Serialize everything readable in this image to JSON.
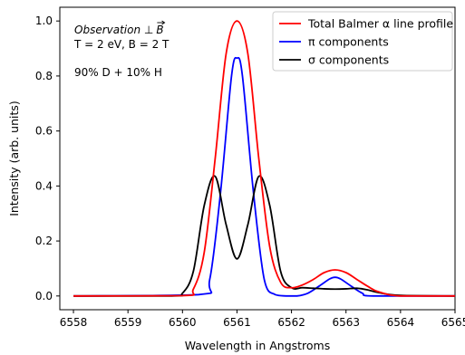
{
  "chart_data": {
    "type": "line",
    "xlabel": "Wavelength in Angstroms",
    "ylabel": "Intensity (arb. units)",
    "xlim": [
      6557.75,
      6565.0
    ],
    "ylim": [
      -0.05,
      1.05
    ],
    "xticks": [
      6558,
      6559,
      6560,
      6561,
      6562,
      6563,
      6564,
      6565
    ],
    "xtick_labels": [
      "6558",
      "6559",
      "6560",
      "6561",
      "6562",
      "6563",
      "6564",
      "6565"
    ],
    "yticks": [
      0.0,
      0.2,
      0.4,
      0.6,
      0.8,
      1.0
    ],
    "ytick_labels": [
      "0.0",
      "0.2",
      "0.4",
      "0.6",
      "0.8",
      "1.0"
    ],
    "grid": false,
    "legend_position": "top-right",
    "annotations": {
      "observation_prefix": "Observation ⊥",
      "observation_symbol": "B",
      "params_line": "T = 2 eV,  B = 2 T",
      "mixture": "90% D  +  10% H"
    },
    "series": [
      {
        "name": "Total Balmer α line profile",
        "color": "#ff0000",
        "x": [
          6558.0,
          6560.0,
          6560.2,
          6560.4,
          6560.6,
          6560.8,
          6561.0,
          6561.2,
          6561.4,
          6561.6,
          6561.8,
          6562.0,
          6562.2,
          6562.4,
          6562.6,
          6562.8,
          6563.0,
          6563.2,
          6563.4,
          6563.6,
          6564.0,
          6565.0
        ],
        "y": [
          0.0,
          0.001,
          0.025,
          0.16,
          0.5,
          0.88,
          1.0,
          0.88,
          0.5,
          0.18,
          0.05,
          0.03,
          0.04,
          0.06,
          0.085,
          0.095,
          0.085,
          0.06,
          0.035,
          0.015,
          0.0,
          0.0
        ]
      },
      {
        "name": "π components",
        "color": "#0000ff",
        "x": [
          6558.0,
          6560.3,
          6560.5,
          6560.7,
          6560.9,
          6561.0,
          6561.1,
          6561.3,
          6561.5,
          6561.7,
          6561.9,
          6562.1,
          6562.3,
          6562.5,
          6562.7,
          6562.8,
          6562.9,
          6563.1,
          6563.3,
          6563.5,
          6565.0
        ],
        "y": [
          0.0,
          0.005,
          0.06,
          0.38,
          0.8,
          0.865,
          0.8,
          0.38,
          0.06,
          0.005,
          0.0,
          0.0,
          0.01,
          0.035,
          0.062,
          0.068,
          0.062,
          0.035,
          0.01,
          0.0,
          0.0
        ]
      },
      {
        "name": "σ components",
        "color": "#000000",
        "x": [
          6558.0,
          6559.8,
          6560.0,
          6560.2,
          6560.4,
          6560.6,
          6560.8,
          6561.0,
          6561.2,
          6561.4,
          6561.6,
          6561.8,
          6562.0,
          6562.2,
          6562.4,
          6562.6,
          6562.8,
          6563.0,
          6563.2,
          6563.4,
          6563.6,
          6564.0,
          6565.0
        ],
        "y": [
          0.0,
          0.0,
          0.01,
          0.09,
          0.33,
          0.435,
          0.26,
          0.135,
          0.26,
          0.435,
          0.33,
          0.09,
          0.03,
          0.03,
          0.028,
          0.026,
          0.025,
          0.026,
          0.028,
          0.022,
          0.012,
          0.002,
          0.0
        ]
      }
    ]
  }
}
